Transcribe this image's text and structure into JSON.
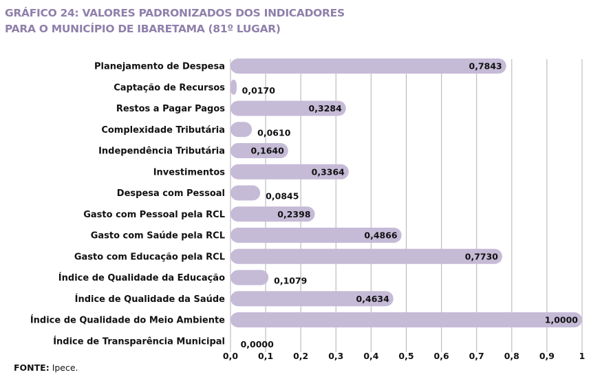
{
  "chart_data": {
    "type": "bar",
    "orientation": "horizontal",
    "title_line1": "GRÁFICO 24: VALORES PADRONIZADOS DOS INDICADORES",
    "title_line2": "PARA O MUNICÍPIO DE IBARETAMA (81º LUGAR)",
    "categories": [
      "Planejamento de Despesa",
      "Captação de Recursos",
      "Restos a Pagar Pagos",
      "Complexidade Tributária",
      "Independência Tributária",
      "Investimentos",
      "Despesa com Pessoal",
      "Gasto com Pessoal pela RCL",
      "Gasto com Saúde pela RCL",
      "Gasto com Educação pela RCL",
      "Índice de Qualidade da Educação",
      "Índice de Qualidade da Saúde",
      "Índice de Qualidade do Meio Ambiente",
      "Índice de Transparência Municipal"
    ],
    "values": [
      0.7843,
      0.017,
      0.3284,
      0.061,
      0.164,
      0.3364,
      0.0845,
      0.2398,
      0.4866,
      0.773,
      0.1079,
      0.4634,
      1.0,
      0.0
    ],
    "value_labels": [
      "0,7843",
      "0,0170",
      "0,3284",
      "0,0610",
      "0,1640",
      "0,3364",
      "0,0845",
      "0,2398",
      "0,4866",
      "0,7730",
      "0,1079",
      "0,4634",
      "1,0000",
      "0,0000"
    ],
    "xlim": [
      0,
      1
    ],
    "xticks": [
      "0,0",
      "0,1",
      "0,2",
      "0,3",
      "0,4",
      "0,5",
      "0,6",
      "0,7",
      "0,8",
      "0,9",
      "1"
    ],
    "grid": true,
    "bar_color": "#c5bbd7",
    "title_color": "#8f80ab"
  },
  "source": {
    "label": "FONTE:",
    "text": "Ipece."
  }
}
